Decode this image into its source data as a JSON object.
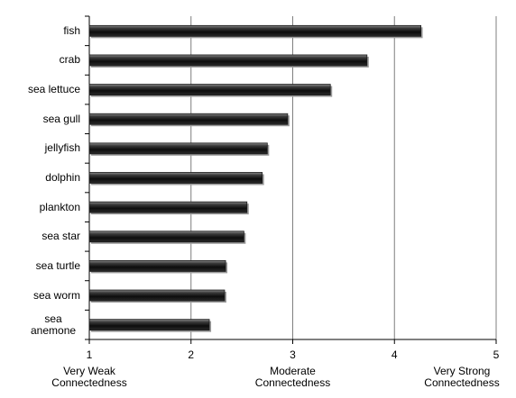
{
  "chart_data": {
    "type": "bar",
    "orientation": "horizontal",
    "categories": [
      "fish",
      "crab",
      "sea lettuce",
      "sea gull",
      "jellyfish",
      "dolphin",
      "plankton",
      "sea star",
      "sea turtle",
      "sea worm",
      "sea anemone"
    ],
    "category_display": [
      "fish",
      "crab",
      "sea lettuce",
      "sea gull",
      "jellyfish",
      "dolphin",
      "plankton",
      "sea star",
      "sea turtle",
      "sea worm",
      "sea\nanemone"
    ],
    "values": [
      4.26,
      3.73,
      3.37,
      2.95,
      2.75,
      2.7,
      2.55,
      2.52,
      2.34,
      2.33,
      2.18
    ],
    "xlim": [
      1,
      5
    ],
    "x_ticks": [
      "1",
      "2",
      "3",
      "4",
      "5"
    ],
    "scale_labels": [
      {
        "tick": 1,
        "text": "Very Weak\nConnectedness"
      },
      {
        "tick": 3,
        "text": "Moderate\nConnectedness"
      },
      {
        "tick": 5,
        "text": "Very Strong\nConnectedness"
      }
    ],
    "grid": "vertical",
    "bar_color": "#1a1a1a"
  }
}
